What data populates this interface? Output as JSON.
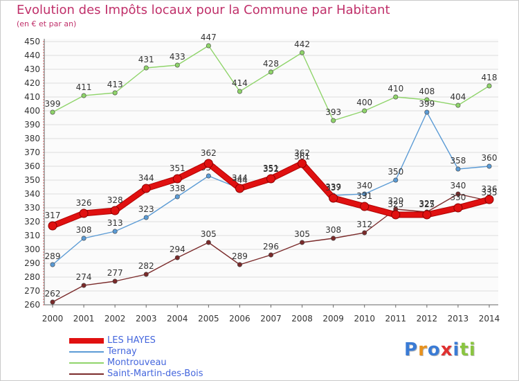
{
  "chart_data": {
    "type": "line",
    "title": "Evolution des Impôts locaux pour la Commune par Habitant",
    "subtitle": "(en € et par an)",
    "xlabel": "",
    "ylabel": "",
    "x": [
      "2000",
      "2001",
      "2002",
      "2003",
      "2004",
      "2005",
      "2006",
      "2007",
      "2008",
      "2009",
      "2010",
      "2011",
      "2012",
      "2013",
      "2014"
    ],
    "ylim": [
      260,
      450
    ],
    "yticks": [
      260,
      270,
      280,
      290,
      300,
      310,
      320,
      330,
      340,
      350,
      360,
      370,
      380,
      390,
      400,
      410,
      420,
      430,
      440,
      450
    ],
    "grid": true,
    "legend_position": "bottom-left",
    "series": [
      {
        "name": "LES HAYES",
        "color": "#e01010",
        "values": [
          317,
          326,
          328,
          344,
          351,
          362,
          344,
          351,
          362,
          337,
          331,
          325,
          325,
          330,
          336
        ]
      },
      {
        "name": "Ternay",
        "color": "#5b9bd5",
        "values": [
          289,
          308,
          313,
          323,
          338,
          353,
          344,
          352,
          361,
          339,
          340,
          350,
          399,
          358,
          360
        ]
      },
      {
        "name": "Montrouveau",
        "color": "#8fd46a",
        "values": [
          399,
          411,
          413,
          431,
          433,
          447,
          414,
          428,
          442,
          393,
          400,
          410,
          408,
          404,
          418
        ]
      },
      {
        "name": "Saint-Martin-des-Bois",
        "color": "#7a2a2a",
        "values": [
          262,
          274,
          277,
          282,
          294,
          305,
          289,
          296,
          305,
          308,
          312,
          329,
          327,
          340,
          335
        ]
      }
    ]
  },
  "logo": {
    "letters": [
      "P",
      "r",
      "o",
      "x",
      "i",
      "t",
      "i"
    ],
    "colors": [
      "#3a7bd5",
      "#e8921e",
      "#3a7bd5",
      "#e03030",
      "#3a7bd5",
      "#8ac540",
      "#8ac540"
    ]
  }
}
